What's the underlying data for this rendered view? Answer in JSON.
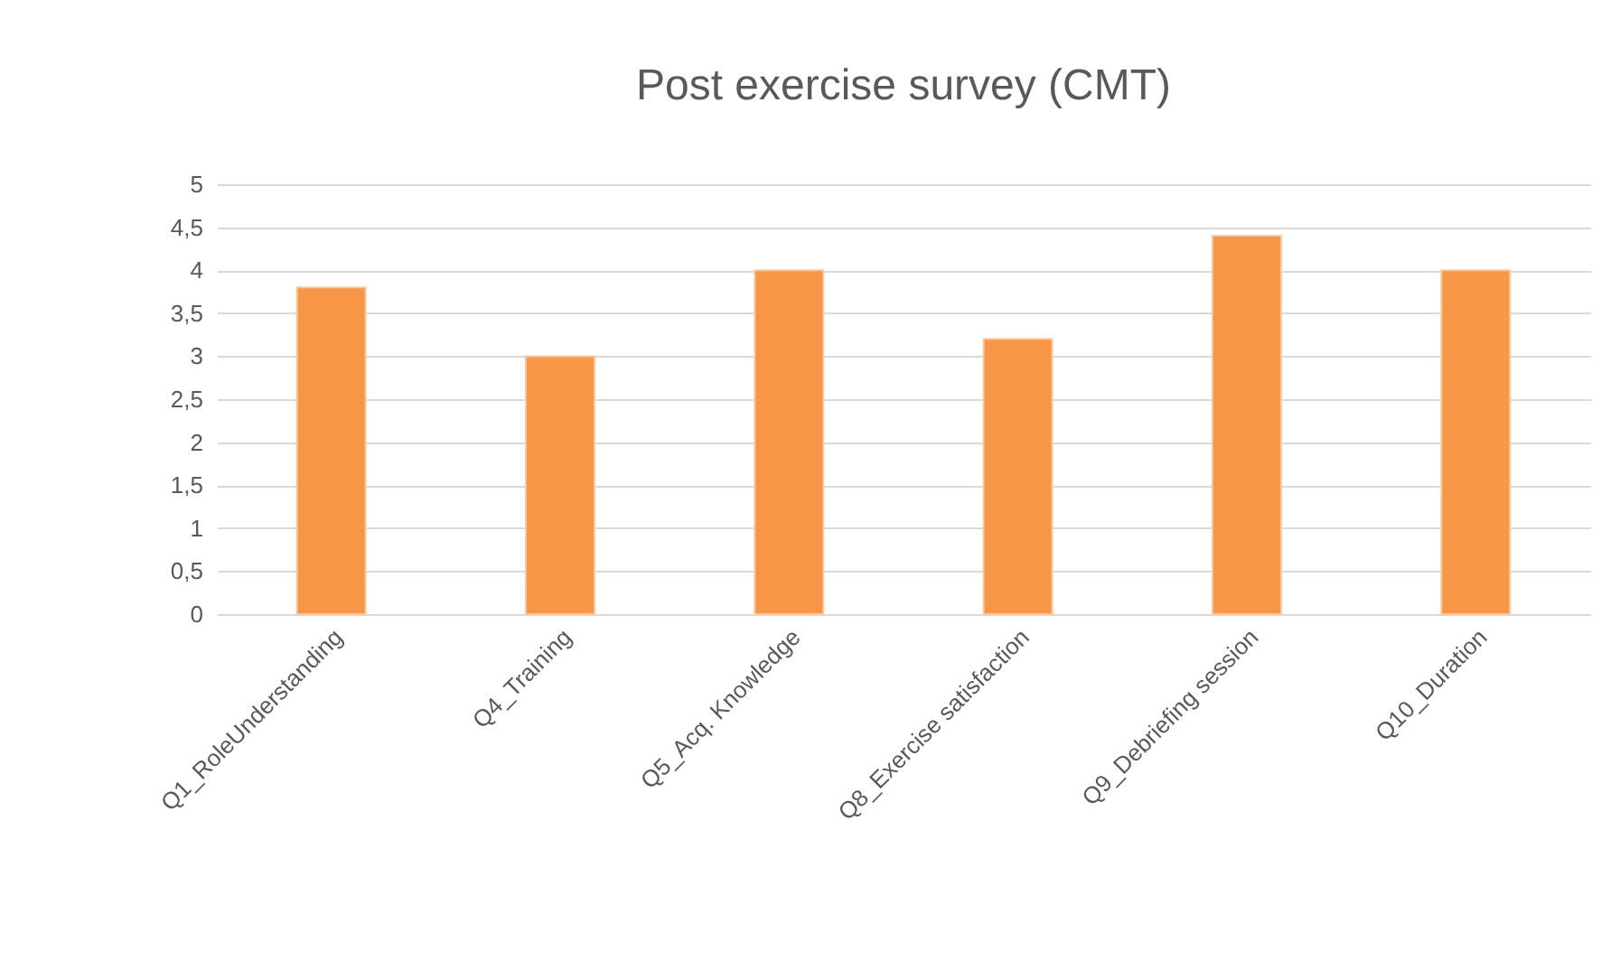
{
  "chart_data": {
    "type": "bar",
    "title": "Post exercise survey (CMT)",
    "categories": [
      "Q1_RoleUnderstanding",
      "Q4_Training",
      "Q5_Acq. Knowledge",
      "Q8_Exercise satisfaction",
      "Q9_Debriefing session",
      "Q10_Duration"
    ],
    "values": [
      3.8,
      3,
      4,
      3.2,
      4.4,
      4
    ],
    "color": "#f79646",
    "ylim": [
      0,
      5
    ],
    "yticks": [
      0,
      {
        "value": 0.5,
        "label": "0,5"
      },
      1,
      {
        "value": 1.5,
        "label": "1,5"
      },
      2,
      {
        "value": 2.5,
        "label": "2,5"
      },
      3,
      {
        "value": 3.5,
        "label": "3,5"
      },
      4,
      {
        "value": 4.5,
        "label": "4,5"
      },
      5
    ],
    "grid": "y"
  }
}
